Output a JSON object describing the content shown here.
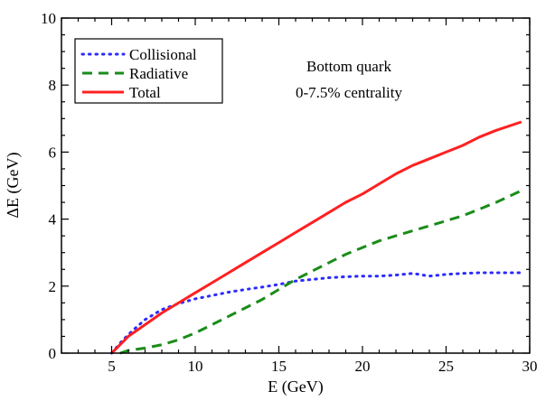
{
  "chart_data": {
    "type": "line",
    "xlabel": "E (GeV)",
    "ylabel": "ΔE (GeV)",
    "xlim": [
      2,
      30
    ],
    "ylim": [
      0,
      10
    ],
    "xticks": [
      5,
      10,
      15,
      20,
      25,
      30
    ],
    "yticks": [
      0,
      2,
      4,
      6,
      8,
      10
    ],
    "grid": false,
    "legend_position": "top-left",
    "annotations": [
      "Bottom quark",
      "0-7.5% centrality"
    ],
    "series": [
      {
        "name": "Collisional",
        "style": "dotted",
        "color": "#2b2bff",
        "x": [
          5,
          5.6,
          6.2,
          7,
          8,
          9,
          10,
          11,
          12,
          13,
          14,
          15,
          16,
          17,
          18,
          19,
          20,
          21,
          22,
          23,
          24,
          25,
          26,
          27,
          28,
          29.5
        ],
        "y": [
          0,
          0.35,
          0.65,
          1.0,
          1.3,
          1.48,
          1.62,
          1.72,
          1.82,
          1.9,
          1.97,
          2.05,
          2.15,
          2.2,
          2.25,
          2.28,
          2.3,
          2.3,
          2.33,
          2.38,
          2.3,
          2.35,
          2.38,
          2.4,
          2.4,
          2.4
        ]
      },
      {
        "name": "Radiative",
        "style": "dashed",
        "color": "#1a8c1a",
        "x": [
          5.5,
          6,
          7,
          8,
          9,
          10,
          11,
          12,
          13,
          14,
          15,
          16,
          17,
          18,
          19,
          20,
          21,
          22,
          23,
          24,
          25,
          26,
          27,
          28,
          29.5
        ],
        "y": [
          0,
          0.08,
          0.15,
          0.25,
          0.4,
          0.6,
          0.85,
          1.1,
          1.35,
          1.6,
          1.9,
          2.2,
          2.45,
          2.7,
          2.95,
          3.15,
          3.35,
          3.5,
          3.65,
          3.8,
          3.95,
          4.1,
          4.3,
          4.5,
          4.85
        ]
      },
      {
        "name": "Total",
        "style": "solid",
        "color": "#ff2020",
        "x": [
          5,
          5.3,
          6,
          7,
          8,
          9,
          10,
          11,
          12,
          13,
          14,
          15,
          16,
          17,
          18,
          19,
          20,
          21,
          22,
          23,
          24,
          25,
          26,
          27,
          28,
          29.5
        ],
        "y": [
          0,
          0.15,
          0.5,
          0.85,
          1.2,
          1.5,
          1.8,
          2.1,
          2.4,
          2.7,
          3.0,
          3.3,
          3.6,
          3.9,
          4.2,
          4.5,
          4.75,
          5.05,
          5.35,
          5.6,
          5.8,
          6.0,
          6.2,
          6.45,
          6.65,
          6.9
        ]
      }
    ]
  }
}
